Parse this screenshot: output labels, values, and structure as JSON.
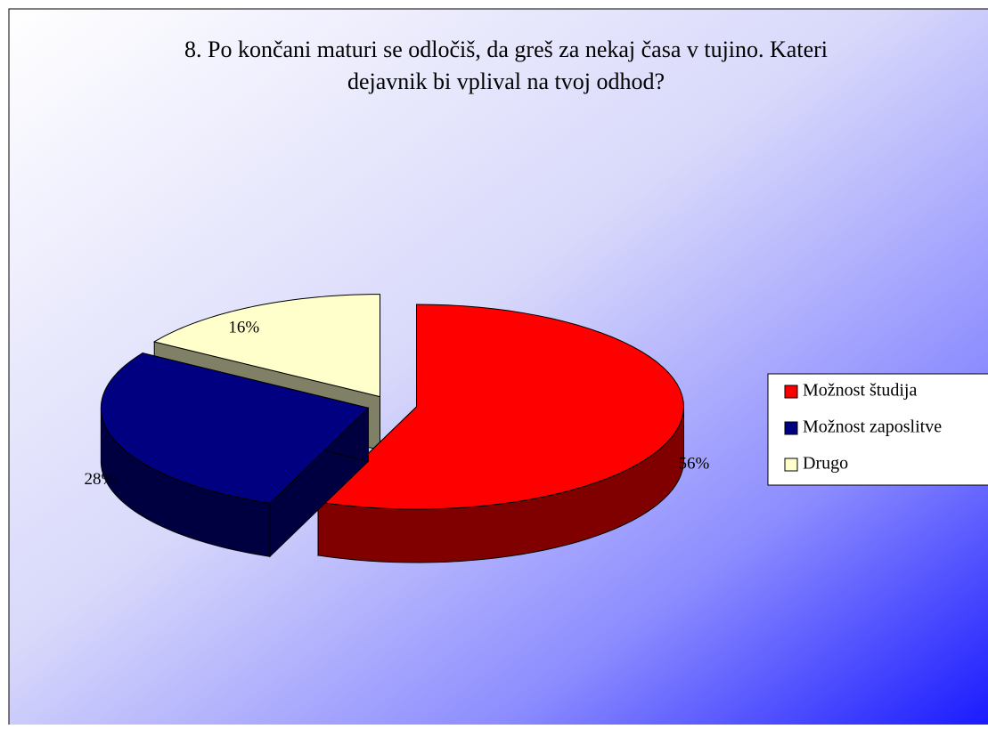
{
  "chart_data": {
    "type": "pie3d",
    "title": [
      "8. Po končani maturi se odločiš, da greš  za nekaj časa v tujino. Kateri",
      "dejavnik bi vplival na tvoj odhod?"
    ],
    "categories": [
      "Možnost študija",
      "Možnost zaposlitve",
      "Drugo"
    ],
    "values": [
      56,
      28,
      16
    ],
    "value_labels": [
      "56%",
      "28%",
      "16%"
    ],
    "colors": [
      "#ff0000",
      "#000080",
      "#ffffcc"
    ],
    "legend": "right"
  }
}
